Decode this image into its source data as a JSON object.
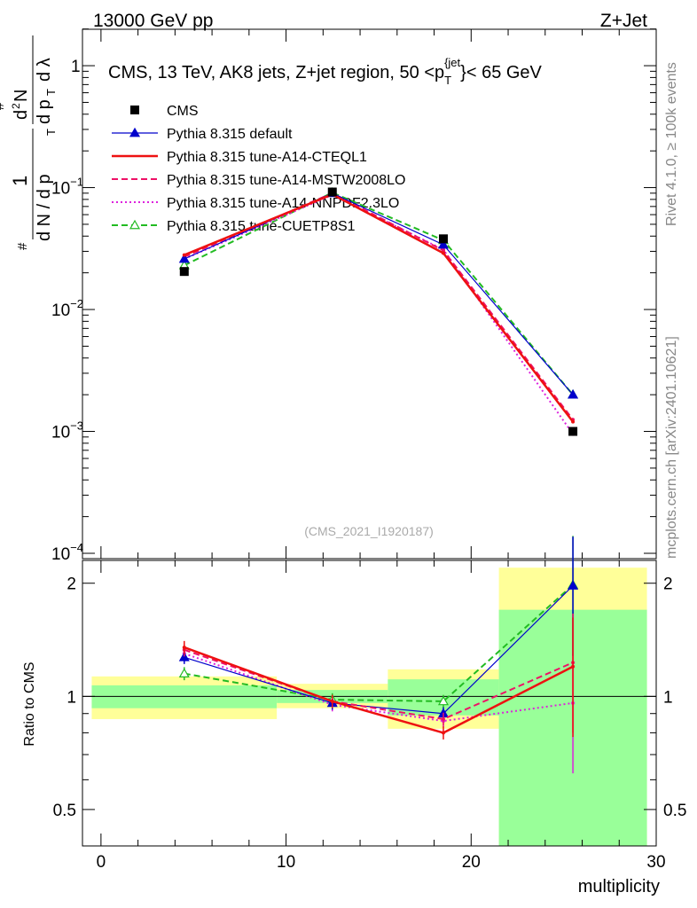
{
  "header": {
    "beam": "13000 GeV pp",
    "process": "Z+Jet"
  },
  "side_labels": {
    "rivet": "Rivet 4.1.0, ≥ 100k events",
    "source": "mcplots.cern.ch [arXiv:2401.10621]"
  },
  "watermark": "(CMS_2021_I1920187)",
  "chart_data": [
    {
      "type": "line",
      "panel": "main",
      "title": "CMS, 13 TeV, AK8 jets, Z+jet region, 50 <p_T^{jet}< 65 GeV",
      "title_parts": {
        "prefix": "CMS, 13 TeV, AK8 jets, Z+jet region, 50 <p",
        "sub": "T",
        "sup": "{jet",
        "suffix": "}< 65 GeV"
      },
      "ylabel": "1/dN/dp_T  d²N/dp_T dλ",
      "ylabel_parts": {
        "a": "1",
        "b": "d N / d p",
        "c": "T",
        "d": "d",
        "e": "N",
        "f": "d p",
        "g": "T",
        "h": "d λ",
        "hash": "#",
        "two": "2"
      },
      "yscale": "log",
      "ylim": [
        0.0001,
        2.2
      ],
      "y_ticks": [
        {
          "value": 1,
          "base": "1",
          "exp": ""
        },
        {
          "value": 0.1,
          "base": "10",
          "exp": "−1"
        },
        {
          "value": 0.01,
          "base": "10",
          "exp": "−2"
        },
        {
          "value": 0.001,
          "base": "10",
          "exp": "−3"
        },
        {
          "value": 0.0001,
          "base": "10",
          "exp": "−4"
        }
      ],
      "x": [
        4.5,
        12.5,
        18.5,
        25.5
      ],
      "xlim": [
        -1,
        30
      ],
      "legend_position": "top-left",
      "series": [
        {
          "name": "CMS",
          "color": "#000000",
          "style": "marker",
          "marker": "square",
          "values": [
            0.0205,
            0.092,
            0.038,
            0.001
          ]
        },
        {
          "name": "Pythia 8.315 default",
          "color": "#0000cc",
          "style": "solid",
          "marker": "triangle",
          "values": [
            0.026,
            0.09,
            0.034,
            0.002
          ]
        },
        {
          "name": "Pythia 8.315 tune-A14-CTEQL1",
          "color": "#ee1111",
          "style": "solid-thick",
          "marker": "",
          "values": [
            0.028,
            0.088,
            0.029,
            0.0012
          ]
        },
        {
          "name": "Pythia 8.315 tune-A14-MSTW2008LO",
          "color": "#ee1166",
          "style": "dashed",
          "marker": "",
          "values": [
            0.027,
            0.09,
            0.0305,
            0.00125
          ]
        },
        {
          "name": "Pythia 8.315 tune-A14-NNPDF2.3LO",
          "color": "#dd22dd",
          "style": "dotted",
          "marker": "",
          "values": [
            0.026,
            0.087,
            0.031,
            0.00095
          ]
        },
        {
          "name": "Pythia 8.315 tune-CUETP8S1",
          "color": "#22bb22",
          "style": "dashed",
          "marker": "open-triangle",
          "values": [
            0.023,
            0.091,
            0.037,
            0.002
          ]
        }
      ]
    },
    {
      "type": "line",
      "panel": "ratio",
      "ylabel": "Ratio to CMS",
      "ylim": [
        0.4,
        2.3
      ],
      "y_ticks": [
        0.5,
        1,
        2
      ],
      "xlabel": "multiplicity",
      "x_ticks": [
        0,
        10,
        20,
        30
      ],
      "x": [
        4.5,
        12.5,
        18.5,
        25.5
      ],
      "xlim": [
        -1,
        30
      ],
      "uncertainty_bands": [
        {
          "xmin": -0.5,
          "xmax": 9.5,
          "inner": [
            0.93,
            1.07
          ],
          "outer": [
            0.87,
            1.13
          ]
        },
        {
          "xmin": 9.5,
          "xmax": 15.5,
          "inner": [
            0.96,
            1.04
          ],
          "outer": [
            0.93,
            1.08
          ]
        },
        {
          "xmin": 15.5,
          "xmax": 21.5,
          "inner": [
            0.89,
            1.11
          ],
          "outer": [
            0.82,
            1.18
          ]
        },
        {
          "xmin": 21.5,
          "xmax": 29.5,
          "inner": [
            0.4,
            1.7
          ],
          "outer": [
            0.4,
            2.2
          ]
        }
      ],
      "series": [
        {
          "name": "Pythia 8.315 default",
          "values": [
            1.27,
            0.96,
            0.9,
            1.97
          ]
        },
        {
          "name": "Pythia 8.315 tune-A14-CTEQL1",
          "values": [
            1.35,
            0.97,
            0.8,
            1.2
          ]
        },
        {
          "name": "Pythia 8.315 tune-A14-MSTW2008LO",
          "values": [
            1.33,
            0.97,
            0.87,
            1.23
          ]
        },
        {
          "name": "Pythia 8.315 tune-A14-NNPDF2.3LO",
          "values": [
            1.3,
            0.95,
            0.86,
            0.96
          ]
        },
        {
          "name": "Pythia 8.315 tune-CUETP8S1",
          "values": [
            1.15,
            0.98,
            0.97,
            1.98
          ]
        }
      ]
    }
  ]
}
